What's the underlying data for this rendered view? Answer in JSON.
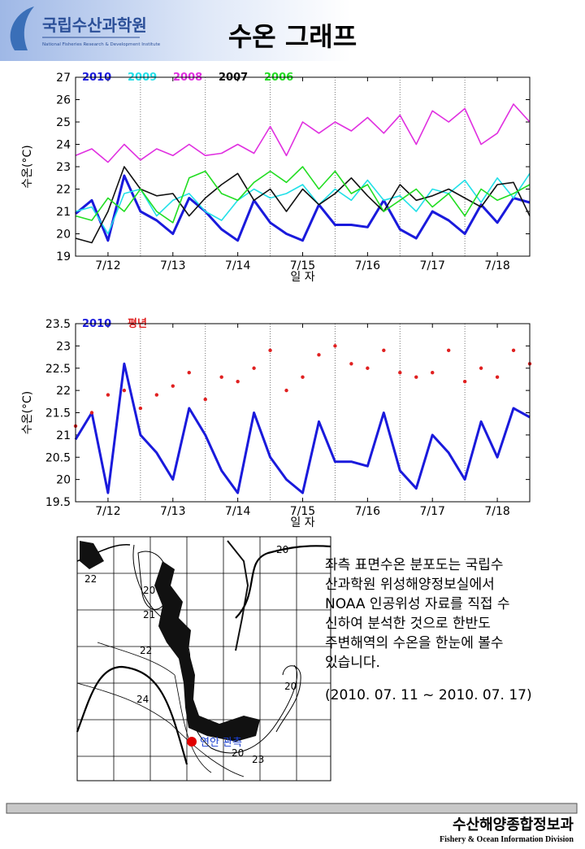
{
  "header": {
    "logo": "국립수산과학원",
    "logo_sub": "National Fisheries Research & Development Institute",
    "title": "수온 그래프"
  },
  "chart_data": [
    {
      "type": "line",
      "ylabel": "수온(°C)",
      "xlabel": "일 자",
      "xlim": [
        12,
        19
      ],
      "ylim": [
        19,
        27
      ],
      "yticks": [
        19,
        20,
        21,
        22,
        23,
        24,
        25,
        26,
        27
      ],
      "xticks": [
        {
          "value": 12.5,
          "label": "7/12"
        },
        {
          "value": 13.5,
          "label": "7/13"
        },
        {
          "value": 14.5,
          "label": "7/14"
        },
        {
          "value": 15.5,
          "label": "7/15"
        },
        {
          "value": 16.5,
          "label": "7/16"
        },
        {
          "value": 17.5,
          "label": "7/17"
        },
        {
          "value": 18.5,
          "label": "7/18"
        }
      ],
      "xgrid": [
        13,
        14,
        15,
        16,
        17,
        18
      ],
      "x": [
        12,
        12.25,
        12.5,
        12.75,
        13,
        13.25,
        13.5,
        13.75,
        14,
        14.25,
        14.5,
        14.75,
        15,
        15.25,
        15.5,
        15.75,
        16,
        16.25,
        16.5,
        16.75,
        17,
        17.25,
        17.5,
        17.75,
        18,
        18.25,
        18.5,
        18.75,
        19
      ],
      "series": [
        {
          "name": "2010",
          "color": "#1a1adc",
          "style": "line",
          "values": [
            20.9,
            21.5,
            19.7,
            22.6,
            21.0,
            20.6,
            20.0,
            21.6,
            21.0,
            20.2,
            19.7,
            21.5,
            20.5,
            20.0,
            19.7,
            21.3,
            20.4,
            20.4,
            20.3,
            21.5,
            20.2,
            19.8,
            21.0,
            20.6,
            20.0,
            21.3,
            20.5,
            21.6,
            21.4
          ]
        },
        {
          "name": "2009",
          "color": "#22e0e8",
          "style": "line",
          "values": [
            21.0,
            21.2,
            20.0,
            21.8,
            22.0,
            20.8,
            21.5,
            21.8,
            21.0,
            20.6,
            21.5,
            22.0,
            21.6,
            21.8,
            22.2,
            21.3,
            22.0,
            21.5,
            22.4,
            21.5,
            21.7,
            21.0,
            22.0,
            21.8,
            22.4,
            21.4,
            22.5,
            21.6,
            22.7
          ]
        },
        {
          "name": "2008",
          "color": "#e030e0",
          "style": "line",
          "values": [
            23.5,
            23.8,
            23.2,
            24.0,
            23.3,
            23.8,
            23.5,
            24.0,
            23.5,
            23.6,
            24.0,
            23.6,
            24.8,
            23.5,
            25.0,
            24.5,
            25.0,
            24.6,
            25.2,
            24.5,
            25.3,
            24.0,
            25.5,
            25.0,
            25.6,
            24.0,
            24.5,
            25.8,
            25.0
          ]
        },
        {
          "name": "2007",
          "color": "#111111",
          "style": "line",
          "values": [
            19.8,
            19.6,
            21.0,
            23.0,
            22.0,
            21.7,
            21.8,
            20.8,
            21.6,
            22.2,
            22.7,
            21.5,
            22.0,
            21.0,
            22.0,
            21.3,
            21.8,
            22.5,
            21.7,
            21.0,
            22.2,
            21.5,
            21.7,
            22.0,
            21.6,
            21.2,
            22.2,
            22.3,
            20.8
          ]
        },
        {
          "name": "2006",
          "color": "#22dd22",
          "style": "line",
          "values": [
            20.8,
            20.6,
            21.6,
            21.0,
            22.0,
            21.0,
            20.5,
            22.5,
            22.8,
            21.8,
            21.5,
            22.3,
            22.8,
            22.3,
            23.0,
            22.0,
            22.8,
            21.8,
            22.2,
            21.0,
            21.5,
            22.0,
            21.2,
            21.8,
            20.8,
            22.0,
            21.5,
            21.8,
            22.2
          ]
        }
      ]
    },
    {
      "type": "line",
      "ylabel": "수온(°C)",
      "xlabel": "일 자",
      "xlim": [
        12,
        19
      ],
      "ylim": [
        19.5,
        23.5
      ],
      "yticks": [
        19.5,
        20,
        20.5,
        21,
        21.5,
        22,
        22.5,
        23,
        23.5
      ],
      "xticks": [
        {
          "value": 12.5,
          "label": "7/12"
        },
        {
          "value": 13.5,
          "label": "7/13"
        },
        {
          "value": 14.5,
          "label": "7/14"
        },
        {
          "value": 15.5,
          "label": "7/15"
        },
        {
          "value": 16.5,
          "label": "7/16"
        },
        {
          "value": 17.5,
          "label": "7/17"
        },
        {
          "value": 18.5,
          "label": "7/18"
        }
      ],
      "xgrid": [
        13,
        14,
        15,
        16,
        17,
        18
      ],
      "x": [
        12,
        12.25,
        12.5,
        12.75,
        13,
        13.25,
        13.5,
        13.75,
        14,
        14.25,
        14.5,
        14.75,
        15,
        15.25,
        15.5,
        15.75,
        16,
        16.25,
        16.5,
        16.75,
        17,
        17.25,
        17.5,
        17.75,
        18,
        18.25,
        18.5,
        18.75,
        19
      ],
      "series": [
        {
          "name": "2010",
          "color": "#1a1adc",
          "style": "line",
          "values": [
            20.9,
            21.5,
            19.7,
            22.6,
            21.0,
            20.6,
            20.0,
            21.6,
            21.0,
            20.2,
            19.7,
            21.5,
            20.5,
            20.0,
            19.7,
            21.3,
            20.4,
            20.4,
            20.3,
            21.5,
            20.2,
            19.8,
            21.0,
            20.6,
            20.0,
            21.3,
            20.5,
            21.6,
            21.4
          ]
        },
        {
          "name": "평년",
          "color": "#e02020",
          "style": "dots",
          "values": [
            21.2,
            21.5,
            21.9,
            22.0,
            21.6,
            21.9,
            22.1,
            22.4,
            21.8,
            22.3,
            22.2,
            22.5,
            22.9,
            22.0,
            22.3,
            22.8,
            23.0,
            22.6,
            22.5,
            22.9,
            22.4,
            22.3,
            22.4,
            22.9,
            22.2,
            22.5,
            22.3,
            22.9,
            22.6
          ]
        }
      ]
    }
  ],
  "map": {
    "labels": [
      "20",
      "22",
      "20",
      "21",
      "22",
      "24",
      "20",
      "23",
      "20"
    ],
    "station": "연안 관측"
  },
  "description": {
    "lines": [
      "좌측 표면수온 분포도는 국립수",
      "산과학원 위성해양정보실에서",
      "NOAA 인공위성 자료를 직접 수",
      "신하여 분석한 것으로  한반도",
      "주변해역의 수온을 한눈에 볼수",
      "있습니다."
    ],
    "period": "(2010. 07. 11 ~ 2010. 07. 17)"
  },
  "footer": {
    "title": "수산해양종합정보과",
    "subtitle": "Fishery & Ocean Information Division"
  }
}
